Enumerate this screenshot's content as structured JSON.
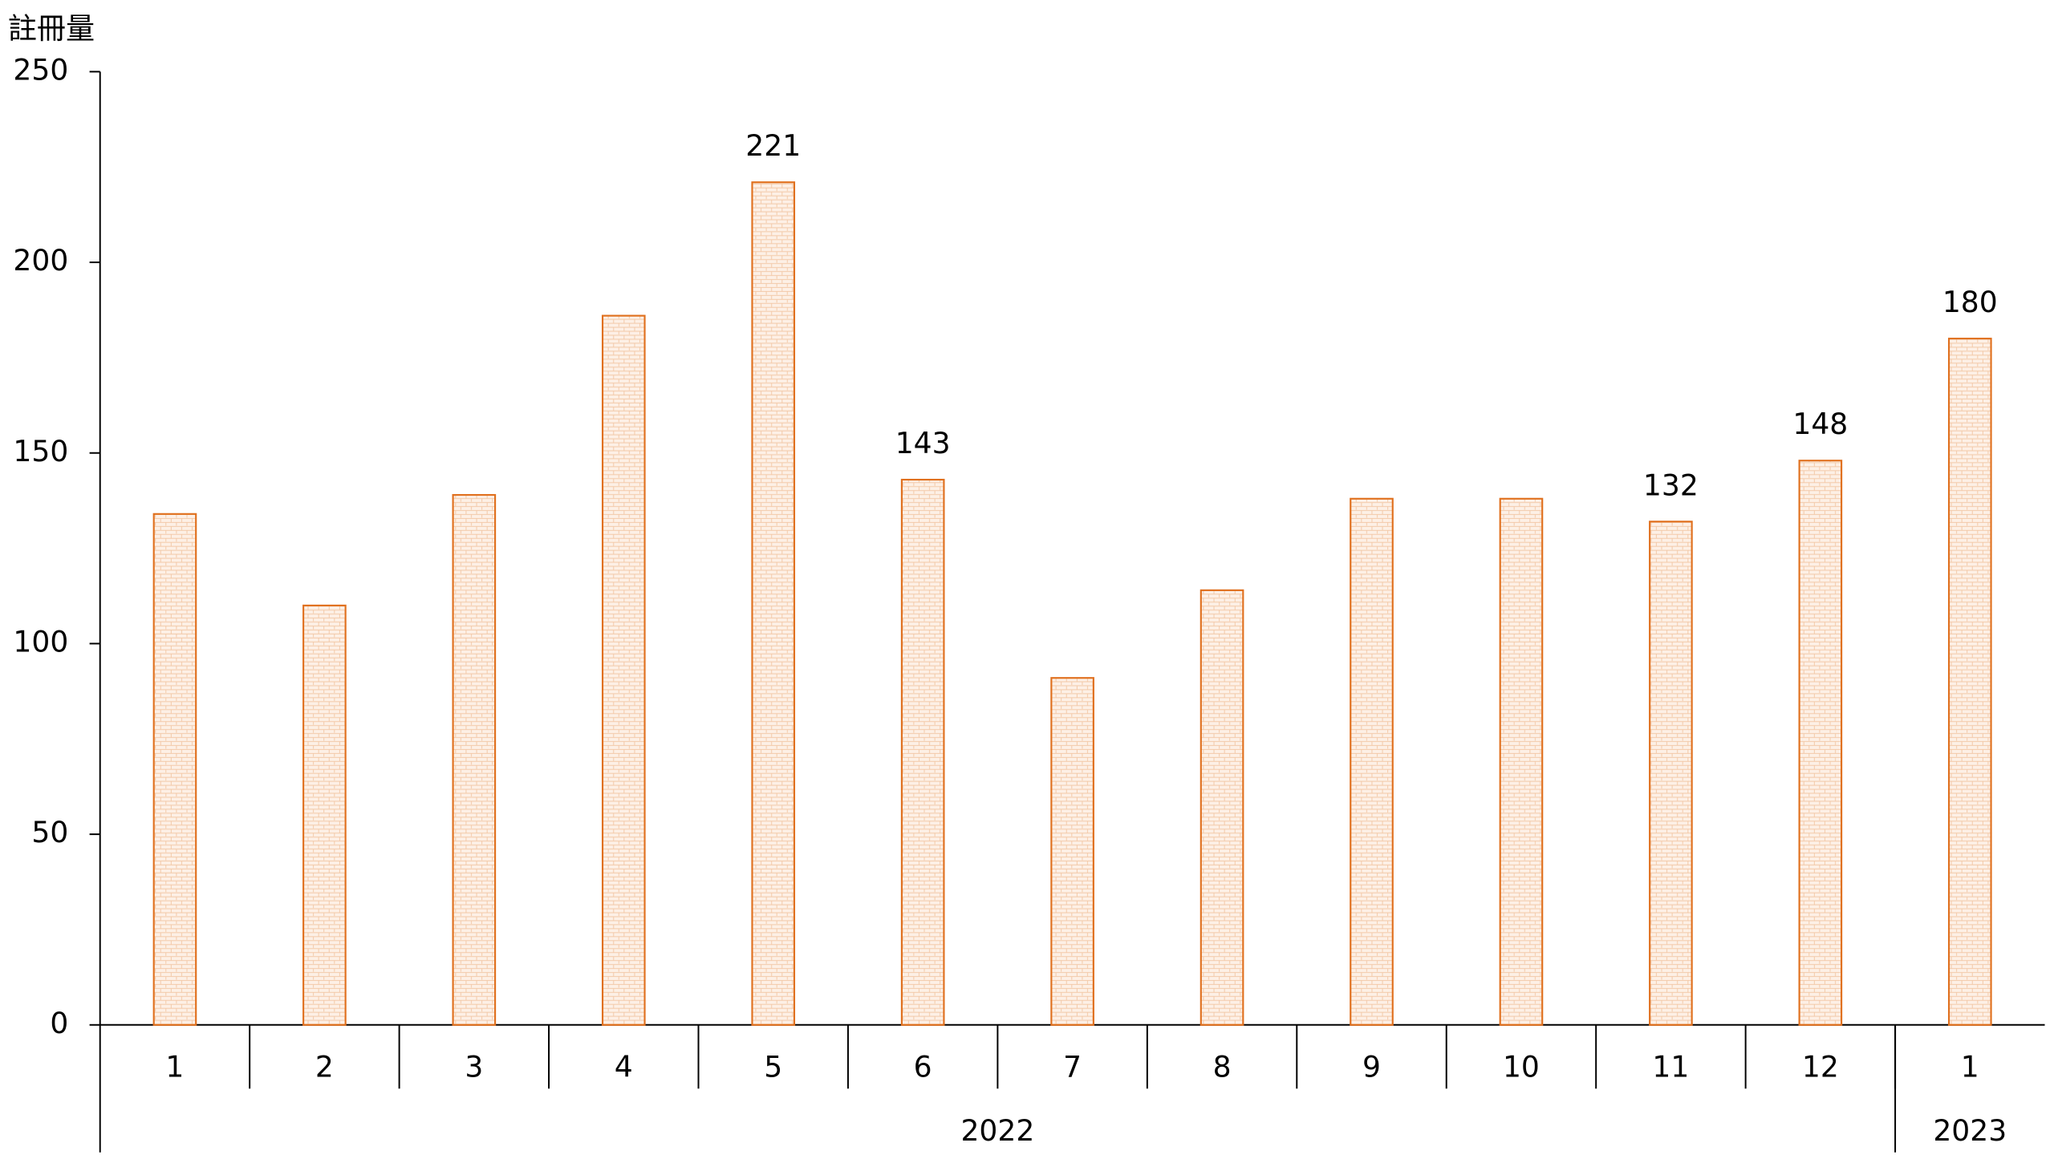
{
  "chart_data": {
    "type": "bar",
    "y_label": "註冊量",
    "categories": [
      "1",
      "2",
      "3",
      "4",
      "5",
      "6",
      "7",
      "8",
      "9",
      "10",
      "11",
      "12",
      "1"
    ],
    "groups": [
      {
        "name": "2022",
        "size": 12
      },
      {
        "name": "2023",
        "size": 1
      }
    ],
    "values": [
      134,
      110,
      139,
      186,
      221,
      143,
      91,
      114,
      138,
      138,
      132,
      148,
      180
    ],
    "value_labels": [
      null,
      null,
      null,
      null,
      "221",
      "143",
      null,
      null,
      null,
      null,
      "132",
      "148",
      "180"
    ],
    "color": "#e0701e",
    "ylim": [
      0,
      250
    ],
    "yticks": [
      0,
      50,
      100,
      150,
      200,
      250
    ],
    "grid": false
  }
}
